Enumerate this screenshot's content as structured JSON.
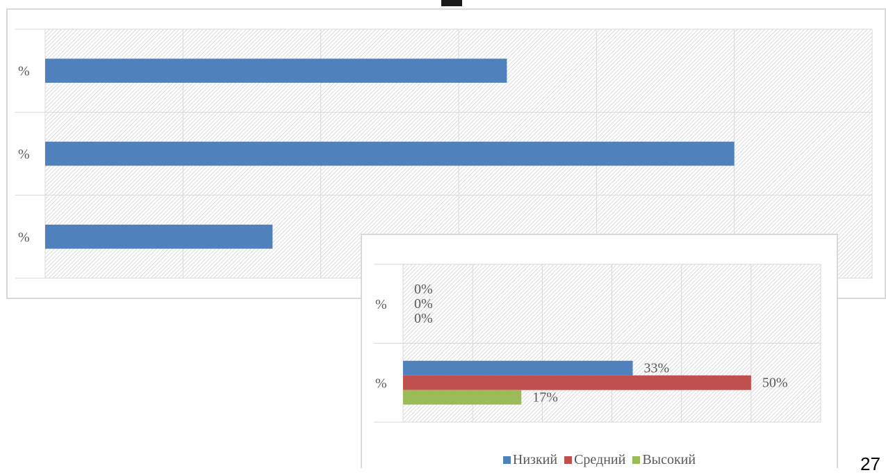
{
  "chart_data": [
    {
      "type": "bar",
      "orientation": "horizontal",
      "title": "",
      "categories": [
        "%",
        "%",
        "%"
      ],
      "series": [
        {
          "values": [
            67,
            100,
            33
          ],
          "color": "#4f81bd"
        }
      ],
      "xlim": [
        0,
        120
      ],
      "grid": true,
      "data_labels": false
    },
    {
      "type": "bar",
      "orientation": "horizontal",
      "categories": [
        "%",
        "%"
      ],
      "series": [
        {
          "name": "Низкий",
          "values": [
            0,
            33
          ],
          "labels": [
            "0%",
            "33%"
          ],
          "color": "#4f81bd"
        },
        {
          "name": "Средний",
          "values": [
            0,
            50
          ],
          "labels": [
            "0%",
            "50%"
          ],
          "color": "#c0504d"
        },
        {
          "name": "Высокий",
          "values": [
            0,
            17
          ],
          "labels": [
            "0%",
            "17%"
          ],
          "color": "#9bbb59"
        }
      ],
      "xlim": [
        0,
        60
      ],
      "grid": true,
      "legend_position": "bottom",
      "data_labels": true
    }
  ],
  "page_number": "27"
}
